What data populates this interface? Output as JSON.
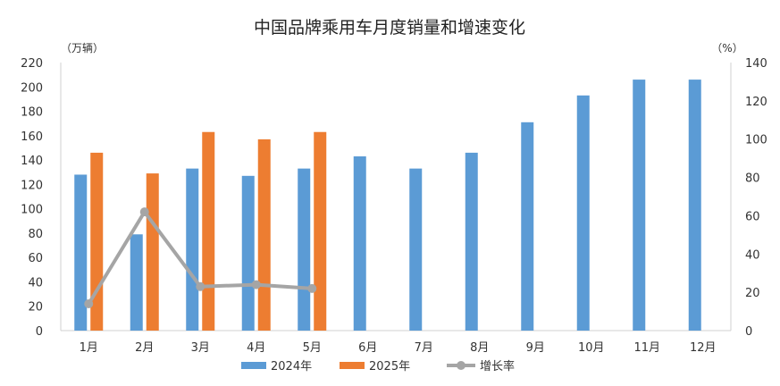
{
  "chart_data": {
    "type": "bar",
    "title": "中国品牌乘用车月度销量和增速变化",
    "ylabel_left": "（万辆）",
    "ylabel_right": "（%）",
    "categories": [
      "1月",
      "2月",
      "3月",
      "4月",
      "5月",
      "6月",
      "7月",
      "8月",
      "9月",
      "10月",
      "11月",
      "12月"
    ],
    "ylim_left": [
      0,
      220
    ],
    "yticks_left": [
      "0",
      "20",
      "40",
      "60",
      "80",
      "100",
      "120",
      "140",
      "160",
      "180",
      "200",
      "220"
    ],
    "ylim_right": [
      0,
      140
    ],
    "yticks_right": [
      "0",
      "20",
      "40",
      "60",
      "80",
      "100",
      "120",
      "140"
    ],
    "series": [
      {
        "name": "2024年",
        "type": "bar",
        "axis": "left",
        "color": "#5b9bd5",
        "values": [
          128,
          79,
          133,
          127,
          133,
          143,
          133,
          146,
          171,
          193,
          206,
          206
        ]
      },
      {
        "name": "2025年",
        "type": "bar",
        "axis": "left",
        "color": "#ed7d31",
        "values": [
          146,
          129,
          163,
          157,
          163,
          null,
          null,
          null,
          null,
          null,
          null,
          null
        ]
      },
      {
        "name": "增长率",
        "type": "line",
        "axis": "right",
        "color": "#a5a5a5",
        "values": [
          14,
          62,
          23,
          24,
          22,
          null,
          null,
          null,
          null,
          null,
          null,
          null
        ]
      }
    ],
    "grid": false,
    "legend_position": "bottom"
  }
}
